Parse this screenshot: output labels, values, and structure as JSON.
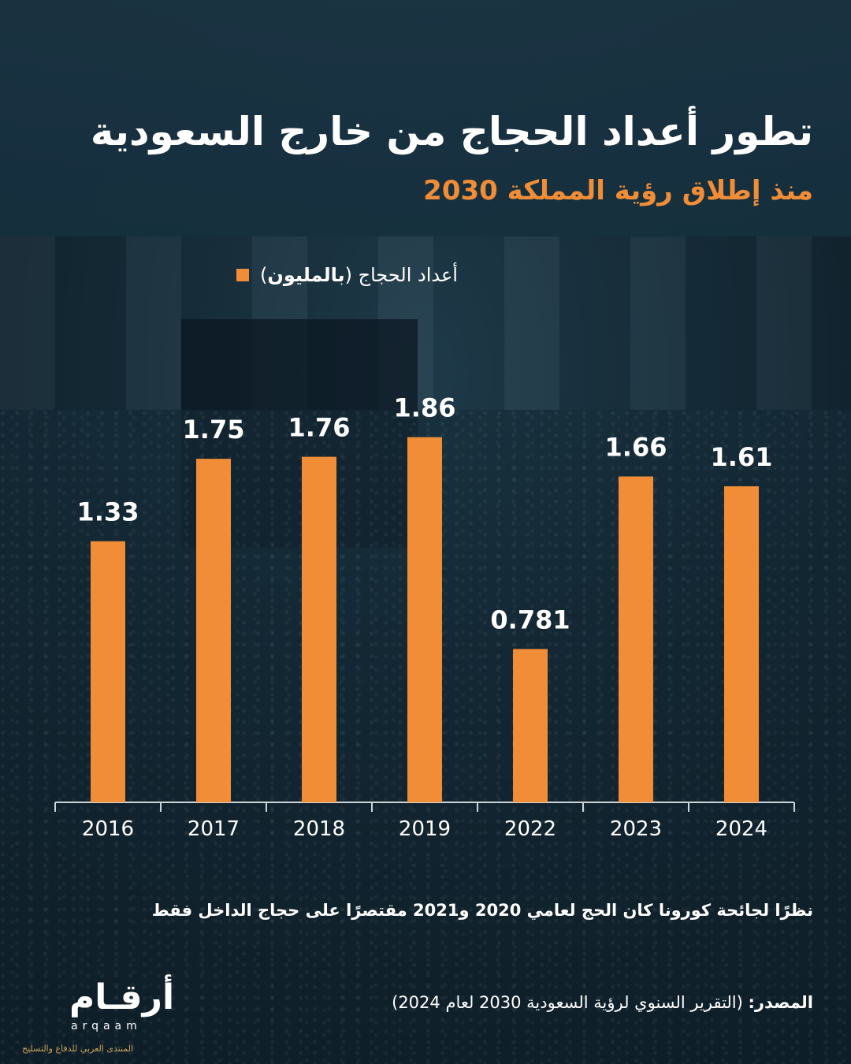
{
  "header": {
    "title": "تطور أعداد الحجاج من خارج السعودية",
    "subtitle": "منذ إطلاق رؤية المملكة 2030"
  },
  "legend": {
    "label_plain": "أعداد الحجاج (",
    "label_bold": "بالمليون",
    "label_close": ")"
  },
  "chart_data": {
    "type": "bar",
    "categories": [
      "2016",
      "2017",
      "2018",
      "2019",
      "2022",
      "2023",
      "2024"
    ],
    "values": [
      1.33,
      1.75,
      1.76,
      1.86,
      0.781,
      1.66,
      1.61
    ],
    "value_labels": [
      "1.33",
      "1.75",
      "1.76",
      "1.86",
      "0.781",
      "1.66",
      "1.61"
    ],
    "title": "تطور أعداد الحجاج من خارج السعودية",
    "subtitle": "منذ إطلاق رؤية المملكة 2030",
    "series": [
      {
        "name": "أعداد الحجاج (بالمليون)",
        "values": [
          1.33,
          1.75,
          1.76,
          1.86,
          0.781,
          1.66,
          1.61
        ]
      }
    ],
    "ylim": [
      0,
      2.2
    ],
    "grid": false,
    "legend_position": "top-center",
    "bar_color": "#f08d36"
  },
  "footer": {
    "note": "نظرًا لجائحة كورونا كان الحج لعامي 2020 و2021 مقتصرًا على حجاج الداخل فقط",
    "source_label": "المصدر:",
    "source_text": " (التقرير السنوي لرؤية السعودية 2030 لعام 2024)"
  },
  "logo": {
    "word": "أرقـام",
    "latin": "arqaam",
    "tagline": "المنتدى العربي للدفاع والتسليح"
  },
  "colors": {
    "accent": "#f08d36",
    "text": "#ffffff",
    "background": "#162d3a"
  }
}
